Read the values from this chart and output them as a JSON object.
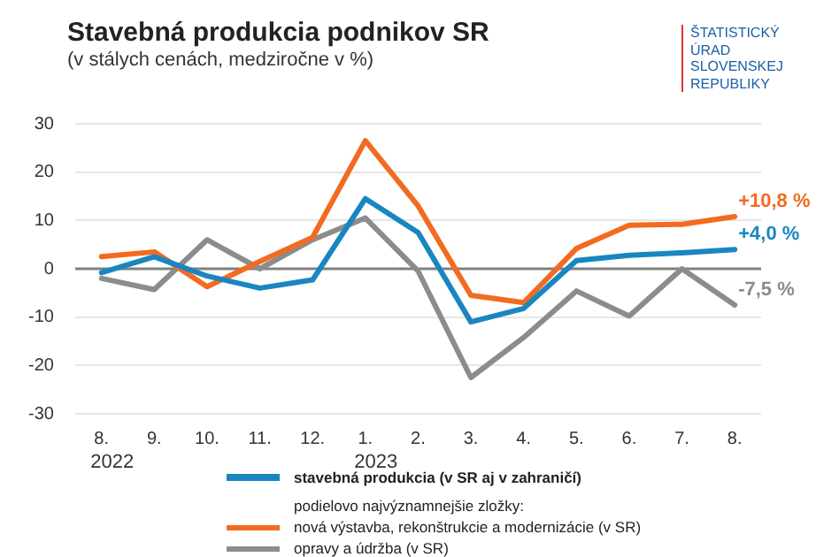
{
  "chart_data": {
    "type": "line",
    "title": "Stavebná produkcia podnikov SR",
    "subtitle": "(v stálych cenách, medziročne v %)",
    "categories": [
      "8.",
      "9.",
      "10.",
      "11.",
      "12.",
      "1.",
      "2.",
      "3.",
      "4.",
      "5.",
      "6.",
      "7.",
      "8."
    ],
    "ylim": [
      -30,
      30
    ],
    "yticks": [
      -30,
      -20,
      -10,
      0,
      10,
      20,
      30
    ],
    "grid": "y",
    "legend": "bottom",
    "legend_title": "podielovo najvýznamnejšie zložky:",
    "ref_lines": [
      {
        "axis": "y",
        "value": 0,
        "color": "#808080"
      }
    ],
    "annotations": [
      "2022",
      "2023",
      "ŠTATISTICKÝ ÚRAD SLOVENSKEJ REPUBLIKY"
    ],
    "series": [
      {
        "name": "stavebná produkcia (v SR aj v zahraničí)",
        "color": "#1a86bf",
        "values": [
          -0.8,
          2.5,
          -1.5,
          -4,
          -2.3,
          14.5,
          7.5,
          -11,
          -8.2,
          1.7,
          2.8,
          3.3,
          4.0
        ],
        "value_labels": [
          null,
          null,
          null,
          null,
          null,
          null,
          null,
          null,
          null,
          null,
          null,
          null,
          "+4,0 %"
        ]
      },
      {
        "name": "nová výstavba, rekonštrukcie a modernizácie (v SR)",
        "color": "#f26b21",
        "values": [
          2.5,
          3.5,
          -3.7,
          1.5,
          6.5,
          26.5,
          13,
          -5.5,
          -7,
          4.2,
          9,
          9.2,
          10.8
        ],
        "value_labels": [
          null,
          null,
          null,
          null,
          null,
          null,
          null,
          null,
          null,
          null,
          null,
          null,
          "+10,8 %"
        ]
      },
      {
        "name": "opravy a údržba (v SR)",
        "color": "#8c8c8c",
        "values": [
          -2,
          -4.3,
          6,
          0,
          6,
          10.5,
          -0.5,
          -22.5,
          -14.2,
          -4.6,
          -9.8,
          0,
          -7.5
        ],
        "value_labels": [
          null,
          null,
          null,
          null,
          null,
          null,
          null,
          null,
          null,
          null,
          null,
          null,
          "-7,5 %"
        ]
      }
    ]
  }
}
